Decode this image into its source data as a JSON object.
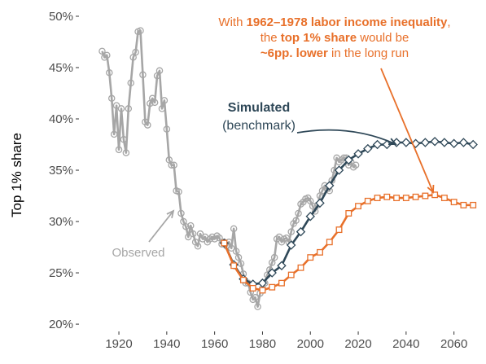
{
  "chart_data": {
    "type": "line",
    "ylabel": "Top 1% share",
    "xlim": [
      1904,
      2071
    ],
    "ylim": [
      19.45,
      50.95
    ],
    "xticks": [
      1920,
      1940,
      1960,
      1980,
      2000,
      2020,
      2040,
      2060
    ],
    "yticks": [
      {
        "value": 20,
        "label": "20%"
      },
      {
        "value": 25,
        "label": "25%"
      },
      {
        "value": 30,
        "label": "30%"
      },
      {
        "value": 35,
        "label": "35%"
      },
      {
        "value": 40,
        "label": "40%"
      },
      {
        "value": 45,
        "label": "45%"
      },
      {
        "value": 50,
        "label": "50%"
      }
    ],
    "grid": false,
    "series": [
      {
        "color": "#a6a6a6",
        "marker": "circle",
        "x": [
          1913,
          1914,
          1915,
          1916,
          1917,
          1918,
          1919,
          1920,
          1921,
          1922,
          1923,
          1924,
          1925,
          1926,
          1927,
          1928,
          1929,
          1930,
          1931,
          1932,
          1933,
          1934,
          1935,
          1936,
          1937,
          1938,
          1939,
          1940,
          1941,
          1942,
          1943,
          1944,
          1945,
          1946,
          1947,
          1948,
          1949,
          1950,
          1951,
          1952,
          1953,
          1954,
          1955,
          1956,
          1957,
          1958,
          1959,
          1960,
          1961,
          1962,
          1963,
          1964,
          1965,
          1966,
          1967,
          1968,
          1969,
          1970,
          1971,
          1972,
          1973,
          1974,
          1975,
          1976,
          1977,
          1978,
          1979,
          1980,
          1981,
          1982,
          1983,
          1984,
          1985,
          1986,
          1987,
          1988,
          1989,
          1990,
          1991,
          1992,
          1993,
          1994,
          1995,
          1996,
          1997,
          1998,
          1999,
          2000,
          2001,
          2002,
          2003,
          2004,
          2005,
          2006,
          2007,
          2008,
          2009,
          2010,
          2011,
          2012,
          2013,
          2014,
          2015,
          2016,
          2017,
          2018,
          2019
        ],
        "values": [
          46.6,
          46.0,
          46.2,
          44.5,
          42.0,
          38.5,
          41.3,
          37.0,
          41.0,
          38.0,
          36.7,
          41.0,
          43.5,
          46.0,
          46.5,
          48.5,
          48.6,
          44.3,
          39.7,
          39.4,
          41.5,
          42.0,
          41.6,
          44.2,
          44.7,
          41.0,
          41.8,
          39.0,
          36.0,
          35.5,
          35.5,
          33.0,
          32.9,
          30.8,
          30.0,
          29.5,
          28.5,
          29.6,
          28.8,
          28.0,
          27.6,
          28.8,
          28.3,
          28.5,
          28.0,
          28.3,
          28.5,
          28.3,
          28.6,
          28.4,
          27.8,
          28.0,
          27.6,
          28.0,
          27.4,
          29.3,
          27.1,
          26.5,
          25.9,
          24.9,
          24.0,
          24.0,
          23.1,
          22.4,
          22.6,
          21.7,
          23.0,
          23.5,
          24.0,
          24.8,
          25.3,
          26.0,
          26.5,
          28.3,
          28.5,
          28.0,
          28.3,
          28.4,
          28.0,
          29.0,
          29.8,
          30.1,
          30.8,
          31.7,
          31.9,
          32.2,
          32.3,
          32.0,
          31.5,
          31.0,
          31.6,
          32.5,
          33.0,
          33.5,
          33.2,
          33.0,
          34.0,
          35.0,
          36.2,
          35.8,
          36.0,
          36.2,
          36.2,
          35.5,
          35.8,
          35.3,
          35.5
        ]
      },
      {
        "color": "#2f4858",
        "marker": "diamond",
        "x": [
          1964,
          1968,
          1972,
          1976,
          1980,
          1984,
          1988,
          1992,
          1996,
          2000,
          2004,
          2008,
          2012,
          2016,
          2020,
          2024,
          2028,
          2032,
          2036,
          2040,
          2044,
          2048,
          2052,
          2056,
          2060,
          2064,
          2068
        ],
        "values": [
          27.9,
          25.8,
          24.4,
          23.9,
          24.0,
          25.0,
          25.7,
          27.7,
          29.0,
          30.5,
          31.8,
          33.5,
          35.0,
          36.0,
          36.6,
          37.1,
          37.5,
          37.5,
          37.7,
          37.7,
          37.6,
          37.7,
          37.8,
          37.7,
          37.6,
          37.7,
          37.5
        ]
      },
      {
        "color": "#e8702a",
        "marker": "square",
        "x": [
          1964,
          1968,
          1972,
          1976,
          1980,
          1984,
          1988,
          1992,
          1996,
          2000,
          2004,
          2008,
          2012,
          2016,
          2020,
          2024,
          2028,
          2032,
          2036,
          2040,
          2044,
          2048,
          2052,
          2056,
          2060,
          2064,
          2068
        ],
        "values": [
          27.9,
          25.7,
          24.3,
          23.5,
          23.3,
          23.6,
          24.0,
          24.8,
          25.5,
          26.5,
          27.0,
          28.0,
          29.2,
          30.8,
          31.5,
          32.0,
          32.3,
          32.4,
          32.3,
          32.3,
          32.4,
          32.5,
          32.6,
          32.3,
          31.9,
          31.6,
          31.6
        ]
      }
    ],
    "annotations": [
      {
        "color": "#a6a6a6",
        "lines": [
          [
            {
              "text": "Observed",
              "bold": false
            }
          ]
        ]
      },
      {
        "color": "#2f4858",
        "lines": [
          [
            {
              "text": "Simulated",
              "bold": true
            }
          ],
          [
            {
              "text": "(benchmark)",
              "bold": false
            }
          ]
        ]
      },
      {
        "color": "#e8702a",
        "lines": [
          [
            {
              "text": "With ",
              "bold": false
            },
            {
              "text": "1962–1978 labor income inequality",
              "bold": true
            },
            {
              "text": ",",
              "bold": false
            }
          ],
          [
            {
              "text": "the ",
              "bold": false
            },
            {
              "text": "top 1% share",
              "bold": true
            },
            {
              "text": " would be",
              "bold": false
            }
          ],
          [
            {
              "text": "~6pp. lower",
              "bold": true
            },
            {
              "text": " in the long run",
              "bold": false
            }
          ]
        ]
      }
    ]
  }
}
